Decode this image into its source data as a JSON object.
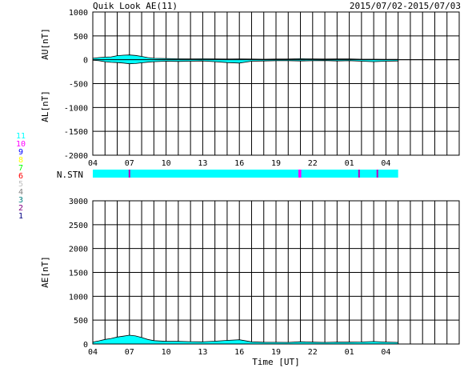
{
  "header": {
    "title": "Quik Look AE(11)",
    "date_range": "2015/07/02-2015/07/03"
  },
  "nstn": {
    "label": "N.STN",
    "base_color": "#00ffff",
    "legend_values": [
      "11",
      "10",
      "9",
      "8",
      "7",
      "6",
      "5",
      "4",
      "3",
      "2",
      "1"
    ],
    "legend_colors": [
      "#00ffff",
      "#ff00ff",
      "#0000ff",
      "#ffff00",
      "#00ff00",
      "#ff0000",
      "#c0c0c0",
      "#808080",
      "#008080",
      "#800080",
      "#000080"
    ],
    "highlights": [
      {
        "hour": 7.0,
        "color": "#c000c0"
      },
      {
        "hour": 20.9,
        "color": "#ff00ff"
      },
      {
        "hour": 21.0,
        "color": "#ff00ff"
      },
      {
        "hour": 25.8,
        "color": "#c000c0"
      },
      {
        "hour": 27.3,
        "color": "#c000c0"
      }
    ]
  },
  "chart_data": [
    {
      "type": "area",
      "name": "AU/AL",
      "fill_color": "#00ffff",
      "ylabel_upper": "AU[nT]",
      "ylabel_lower": "AL[nT]",
      "ylim": [
        -2000,
        1000
      ],
      "yticks": [
        "1000",
        "500",
        "0",
        "-500",
        "-1000",
        "-1500",
        "-2000"
      ],
      "xlim": [
        4,
        34
      ],
      "xticks": [
        "04",
        "07",
        "10",
        "13",
        "16",
        "19",
        "22",
        "01",
        "04"
      ],
      "series": [
        {
          "name": "AU",
          "x": [
            4,
            4.5,
            5,
            5.5,
            6,
            6.5,
            7,
            7.5,
            8,
            8.5,
            9,
            10,
            11,
            12,
            13,
            14,
            15,
            16,
            17,
            18,
            19,
            20,
            21,
            22,
            23,
            24,
            25,
            26,
            27,
            28,
            29
          ],
          "values": [
            30,
            45,
            55,
            60,
            85,
            95,
            100,
            90,
            70,
            45,
            30,
            25,
            20,
            18,
            20,
            18,
            15,
            18,
            15,
            12,
            15,
            14,
            22,
            18,
            15,
            16,
            18,
            12,
            12,
            10,
            8
          ]
        },
        {
          "name": "AL",
          "x": [
            4,
            4.5,
            5,
            5.5,
            6,
            6.5,
            7,
            7.5,
            8,
            8.5,
            9,
            10,
            11,
            12,
            13,
            14,
            15,
            16,
            17,
            18,
            19,
            20,
            21,
            22,
            23,
            24,
            25,
            26,
            27,
            28,
            29
          ],
          "values": [
            -10,
            -20,
            -40,
            -55,
            -60,
            -70,
            -85,
            -80,
            -65,
            -50,
            -40,
            -30,
            -35,
            -30,
            -25,
            -40,
            -60,
            -70,
            -30,
            -25,
            -20,
            -20,
            -25,
            -20,
            -18,
            -25,
            -20,
            -30,
            -40,
            -30,
            -25
          ]
        }
      ]
    },
    {
      "type": "area",
      "name": "AE",
      "fill_color": "#00ffff",
      "ylabel": "AE[nT]",
      "xlabel": "Time [UT]",
      "ylim": [
        0,
        3000
      ],
      "yticks": [
        "3000",
        "2500",
        "2000",
        "1500",
        "1000",
        "500",
        "0"
      ],
      "xlim": [
        4,
        34
      ],
      "xticks": [
        "04",
        "07",
        "10",
        "13",
        "16",
        "19",
        "22",
        "01",
        "04"
      ],
      "series": [
        {
          "name": "AE",
          "x": [
            4,
            4.5,
            5,
            5.5,
            6,
            6.5,
            7,
            7.5,
            8,
            8.5,
            9,
            10,
            11,
            12,
            13,
            14,
            15,
            16,
            17,
            18,
            19,
            20,
            21,
            22,
            23,
            24,
            25,
            26,
            27,
            28,
            29
          ],
          "values": [
            40,
            65,
            95,
            115,
            145,
            165,
            185,
            170,
            135,
            95,
            70,
            55,
            55,
            48,
            45,
            58,
            75,
            88,
            45,
            37,
            35,
            34,
            47,
            38,
            33,
            41,
            38,
            42,
            52,
            40,
            33
          ]
        }
      ]
    }
  ]
}
